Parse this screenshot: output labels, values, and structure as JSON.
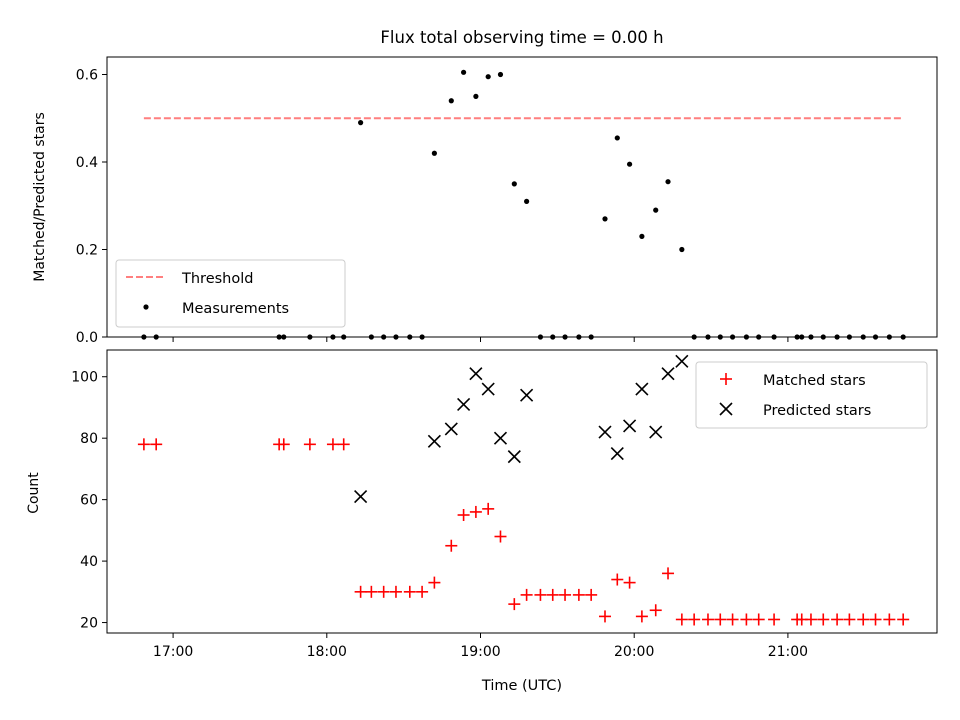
{
  "chart_data": {
    "title": "Flux total observing time = 0.00 h",
    "xlabel": "Time (UTC)",
    "xlim": [
      16.57,
      21.97
    ],
    "x_ticks": [
      {
        "value": 17,
        "label": "17:00"
      },
      {
        "value": 18,
        "label": "18:00"
      },
      {
        "value": 19,
        "label": "19:00"
      },
      {
        "value": 20,
        "label": "20:00"
      },
      {
        "value": 21,
        "label": "21:00"
      }
    ],
    "panels": [
      {
        "type": "scatter",
        "ylabel": "Matched/Predicted stars",
        "ylim": [
          0,
          0.64
        ],
        "y_ticks": [
          {
            "value": 0,
            "label": "0.0"
          },
          {
            "value": 0.2,
            "label": "0.2"
          },
          {
            "value": 0.4,
            "label": "0.4"
          },
          {
            "value": 0.6,
            "label": "0.6"
          }
        ],
        "legend": {
          "position": "lower-left",
          "entries": [
            {
              "label": "Threshold",
              "marker": "dashed-line",
              "color": "#ff7f7f"
            },
            {
              "label": "Measurements",
              "marker": "dot",
              "color": "#000000"
            }
          ]
        },
        "threshold": {
          "name": "Threshold",
          "value": 0.5,
          "x_range": [
            16.81,
            21.75
          ],
          "color": "#ff7f7f"
        },
        "series": [
          {
            "name": "Measurements",
            "color": "#000000",
            "x": [
              16.81,
              16.89,
              17.69,
              17.72,
              17.89,
              18.04,
              18.11,
              18.22,
              18.29,
              18.37,
              18.45,
              18.54,
              18.62,
              18.7,
              18.81,
              18.89,
              18.97,
              19.05,
              19.13,
              19.22,
              19.3,
              19.39,
              19.47,
              19.55,
              19.64,
              19.72,
              19.81,
              19.89,
              19.97,
              20.05,
              20.14,
              20.22,
              20.31,
              20.39,
              20.48,
              20.56,
              20.64,
              20.73,
              20.81,
              20.91,
              21.06,
              21.09,
              21.15,
              21.23,
              21.32,
              21.4,
              21.49,
              21.57,
              21.66,
              21.75
            ],
            "y": [
              0,
              0,
              0,
              0,
              0,
              0,
              0,
              0.49,
              0,
              0,
              0,
              0,
              0,
              0.42,
              0.54,
              0.605,
              0.55,
              0.595,
              0.6,
              0.35,
              0.31,
              0,
              0,
              0,
              0,
              0,
              0.27,
              0.455,
              0.395,
              0.23,
              0.29,
              0.355,
              0.2,
              0,
              0,
              0,
              0,
              0,
              0,
              0,
              0,
              0,
              0,
              0,
              0,
              0,
              0,
              0,
              0,
              0
            ]
          }
        ]
      },
      {
        "type": "scatter",
        "ylabel": "Count",
        "ylim": [
          16.6,
          108.7
        ],
        "y_ticks": [
          {
            "value": 20,
            "label": "20"
          },
          {
            "value": 40,
            "label": "40"
          },
          {
            "value": 60,
            "label": "60"
          },
          {
            "value": 80,
            "label": "80"
          },
          {
            "value": 100,
            "label": "100"
          }
        ],
        "legend": {
          "position": "upper-right",
          "entries": [
            {
              "label": "Matched stars",
              "marker": "plus",
              "color": "#ff0000"
            },
            {
              "label": "Predicted stars",
              "marker": "x",
              "color": "#000000"
            }
          ]
        },
        "series": [
          {
            "name": "Matched stars",
            "marker": "plus",
            "color": "#ff0000",
            "x": [
              16.81,
              16.89,
              17.69,
              17.72,
              17.89,
              18.04,
              18.11,
              18.22,
              18.29,
              18.37,
              18.45,
              18.54,
              18.62,
              18.7,
              18.81,
              18.89,
              18.97,
              19.05,
              19.13,
              19.22,
              19.3,
              19.39,
              19.47,
              19.55,
              19.64,
              19.72,
              19.81,
              19.89,
              19.97,
              20.05,
              20.14,
              20.22,
              20.31,
              20.39,
              20.48,
              20.56,
              20.64,
              20.73,
              20.81,
              20.91,
              21.06,
              21.09,
              21.15,
              21.23,
              21.32,
              21.4,
              21.49,
              21.57,
              21.66,
              21.75
            ],
            "y": [
              78,
              78,
              78,
              78,
              78,
              78,
              78,
              30,
              30,
              30,
              30,
              30,
              30,
              33,
              45,
              55,
              56,
              57,
              48,
              26,
              29,
              29,
              29,
              29,
              29,
              29,
              22,
              34,
              33,
              22,
              24,
              36,
              21,
              21,
              21,
              21,
              21,
              21,
              21,
              21,
              21,
              21,
              21,
              21,
              21,
              21,
              21,
              21,
              21,
              21
            ]
          },
          {
            "name": "Predicted stars",
            "marker": "x",
            "color": "#000000",
            "x": [
              18.22,
              18.7,
              18.81,
              18.89,
              18.97,
              19.05,
              19.13,
              19.22,
              19.3,
              19.81,
              19.89,
              19.97,
              20.05,
              20.14,
              20.22,
              20.31
            ],
            "y": [
              61,
              79,
              83,
              91,
              101,
              96,
              80,
              74,
              94,
              82,
              75,
              84,
              96,
              82,
              101,
              105
            ]
          }
        ]
      }
    ]
  }
}
